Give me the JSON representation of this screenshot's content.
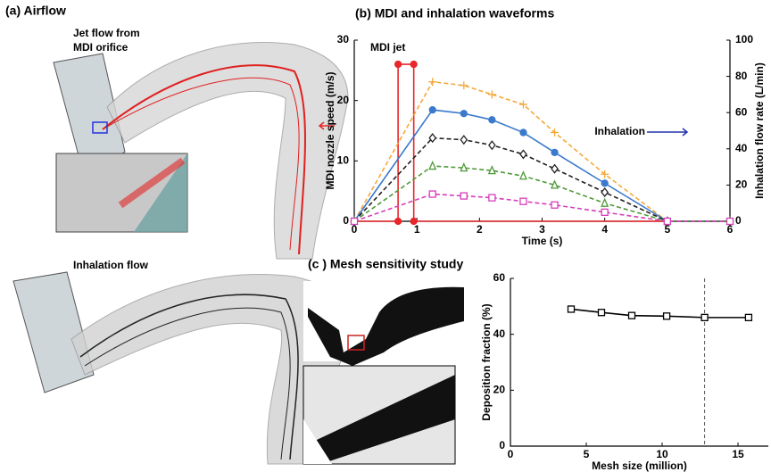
{
  "panels": {
    "a_title": "(a) Airflow",
    "jet_label": [
      "Jet flow from",
      "MDI orifice"
    ],
    "inhalation_label": "Inhalation flow"
  },
  "chart_data": [
    {
      "type": "line",
      "title": "(b) MDI and inhalation waveforms",
      "x_label": "Time (s)",
      "y_label": "MDI nozzle speed (m/s)",
      "y2_label": "Inhalation flow rate (L/min)",
      "annotations": [
        "MDI jet",
        "Inhalation"
      ],
      "x": [
        0,
        1.25,
        1.75,
        2.2,
        2.7,
        3.2,
        4,
        5,
        6
      ],
      "xlim": [
        0,
        6
      ],
      "xticks": [
        0,
        1,
        2,
        3,
        4,
        5,
        6
      ],
      "ylim": [
        0,
        30
      ],
      "yticks": [
        0,
        10,
        20,
        30
      ],
      "y2lim": [
        0,
        100
      ],
      "y2ticks": [
        0,
        20,
        40,
        60,
        80,
        100
      ],
      "series": [
        {
          "color": "#e8262b",
          "marker": "circle",
          "dash": false,
          "axis": "y",
          "x": [
            0,
            0.7,
            0.7,
            0.95,
            0.95,
            6
          ],
          "values": [
            0,
            0,
            26,
            26,
            0,
            0
          ]
        },
        {
          "color": "#f5a83a",
          "marker": "plus",
          "dash": true,
          "axis": "y2",
          "values": [
            0,
            77,
            75,
            70,
            64.5,
            49,
            26,
            0,
            0
          ]
        },
        {
          "color": "#3a79cc",
          "marker": "circle",
          "dash": false,
          "axis": "y2",
          "values": [
            0,
            61.5,
            59.5,
            56,
            49,
            38,
            21,
            0,
            0
          ]
        },
        {
          "color": "#222222",
          "marker": "diamond",
          "dash": true,
          "axis": "y2",
          "values": [
            0,
            46,
            45,
            42,
            37,
            29,
            16,
            0,
            0
          ]
        },
        {
          "color": "#4f9a3a",
          "marker": "triangle",
          "dash": true,
          "axis": "y2",
          "values": [
            0,
            30.5,
            29.5,
            28,
            25,
            20,
            10,
            0,
            0
          ]
        },
        {
          "color": "#d63ebb",
          "marker": "square",
          "dash": true,
          "axis": "y2",
          "values": [
            0,
            15,
            14,
            13,
            11,
            9,
            5,
            0,
            0
          ]
        }
      ]
    },
    {
      "type": "line",
      "title": "(c ) Mesh sensitivity study",
      "x_label": "Mesh size (million)",
      "y_label": "Deposition fraction (%)",
      "x": [
        4,
        6,
        8,
        10.3,
        12.8,
        15.7
      ],
      "xlim": [
        0,
        17
      ],
      "xticks": [
        0,
        5,
        10,
        15
      ],
      "ylim": [
        0,
        60
      ],
      "yticks": [
        0,
        20,
        40,
        60
      ],
      "vline": 12.8,
      "series": [
        {
          "color": "#000000",
          "marker": "square",
          "dash": false,
          "axis": "y",
          "values": [
            49,
            47.8,
            46.7,
            46.5,
            46,
            46
          ]
        }
      ]
    }
  ]
}
